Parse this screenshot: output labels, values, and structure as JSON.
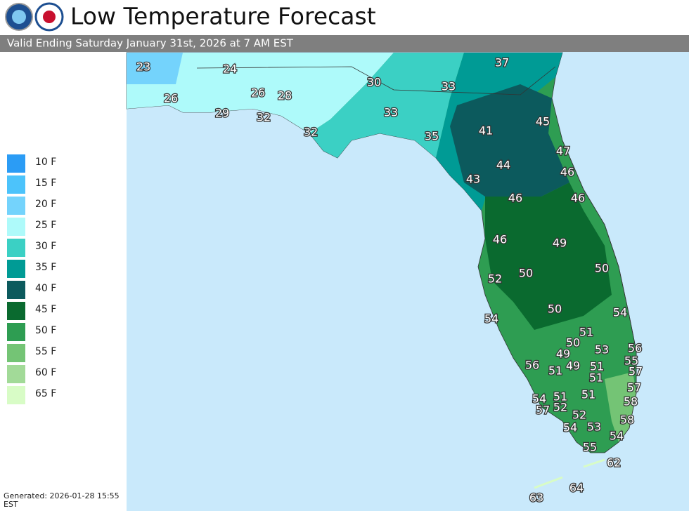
{
  "header": {
    "title": "Low Temperature Forecast",
    "subtitle": "Valid Ending Saturday January 31st, 2026 at 7 AM EST"
  },
  "legend": [
    {
      "label": "10 F",
      "color": "#2b9cf5"
    },
    {
      "label": "15 F",
      "color": "#4cc3fb"
    },
    {
      "label": "20 F",
      "color": "#74d3fc"
    },
    {
      "label": "25 F",
      "color": "#aefafa"
    },
    {
      "label": "30 F",
      "color": "#3bd0c4"
    },
    {
      "label": "35 F",
      "color": "#009b95"
    },
    {
      "label": "40 F",
      "color": "#0c5a5d"
    },
    {
      "label": "45 F",
      "color": "#0a6a2f"
    },
    {
      "label": "50 F",
      "color": "#2e9d52"
    },
    {
      "label": "55 F",
      "color": "#74c475"
    },
    {
      "label": "60 F",
      "color": "#a2da98"
    },
    {
      "label": "65 F",
      "color": "#d8fcc6"
    }
  ],
  "labels": [
    23,
    24,
    26,
    26,
    28,
    29,
    32,
    32,
    30,
    33,
    37,
    33,
    35,
    41,
    45,
    47,
    46,
    43,
    44,
    46,
    46,
    46,
    49,
    50,
    50,
    52,
    50,
    54,
    54,
    51,
    50,
    53,
    56,
    55,
    49,
    49,
    51,
    57,
    56,
    51,
    51,
    57,
    51,
    51,
    54,
    58,
    52,
    57,
    52,
    58,
    54,
    53,
    54,
    55,
    62,
    64,
    63
  ],
  "footer": {
    "generated": "Generated: 2026-01-28 15:55",
    "zone": "EST"
  }
}
